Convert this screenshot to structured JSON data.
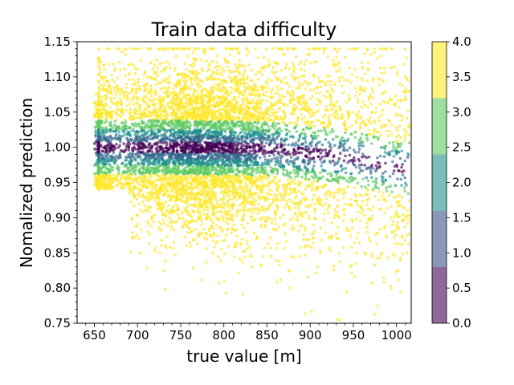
{
  "chart_data": {
    "type": "scatter",
    "title": "Train data difficulty",
    "xlabel": "true value [m]",
    "ylabel": "Nomalized prediction",
    "xlim": [
      630,
      1017
    ],
    "ylim": [
      0.75,
      1.15
    ],
    "xticks": [
      650,
      700,
      750,
      800,
      850,
      900,
      950,
      1000
    ],
    "xtick_labels": [
      "650",
      "700",
      "750",
      "800",
      "850",
      "900",
      "950",
      "1000"
    ],
    "yticks": [
      0.75,
      0.8,
      0.85,
      0.9,
      0.95,
      1.0,
      1.05,
      1.1,
      1.15
    ],
    "ytick_labels": [
      "0.75",
      "0.80",
      "0.85",
      "0.90",
      "0.95",
      "1.00",
      "1.05",
      "1.10",
      "1.15"
    ],
    "grid": false,
    "colorbar": {
      "range": [
        0,
        4
      ],
      "ticks": [
        "0.0",
        "0.5",
        "1.0",
        "1.5",
        "2.0",
        "2.5",
        "3.0",
        "3.5",
        "4.0"
      ],
      "colormap": "viridis",
      "alpha": 0.6
    },
    "difficulty_classes": [
      {
        "value": 0,
        "color": "#440154"
      },
      {
        "value": 1,
        "color": "#31688e"
      },
      {
        "value": 2,
        "color": "#21918c"
      },
      {
        "value": 3,
        "color": "#5ec962"
      },
      {
        "value": 4,
        "color": "#fde725"
      }
    ],
    "band_halfwidths": [
      0.0075,
      0.016,
      0.025,
      0.038
    ],
    "trend_center": [
      {
        "x": 650,
        "y": 1.0
      },
      {
        "x": 750,
        "y": 1.0
      },
      {
        "x": 850,
        "y": 0.998
      },
      {
        "x": 950,
        "y": 0.985
      },
      {
        "x": 1000,
        "y": 0.97
      }
    ],
    "summary": {
      "x_range_of_points": [
        645,
        1017
      ],
      "y_range_of_points": [
        0.78,
        1.135
      ]
    }
  }
}
